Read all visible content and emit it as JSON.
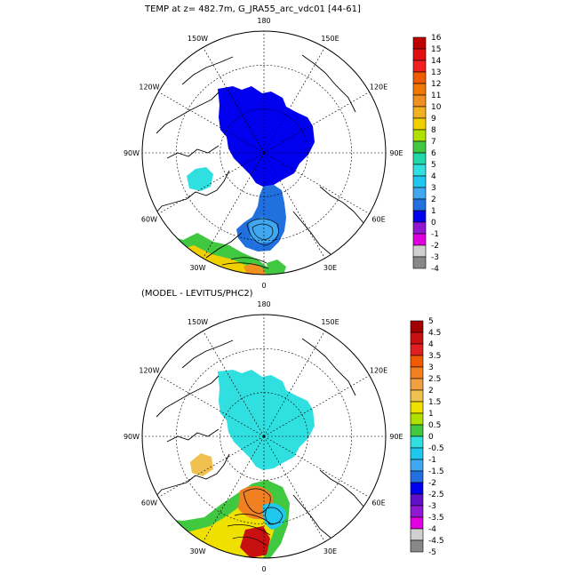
{
  "panels": [
    {
      "title": "TEMP at z= 482.7m, G_JRA55_arc_vdc01 [44-61]",
      "lon_labels": [
        "180",
        "150E",
        "120E",
        "90E",
        "60E",
        "30E",
        "0",
        "30W",
        "60W",
        "90W",
        "120W",
        "150W"
      ],
      "colorbar": {
        "labels": [
          "16",
          "15",
          "14",
          "13",
          "12",
          "11",
          "10",
          "9",
          "8",
          "7",
          "6",
          "5",
          "4",
          "3",
          "2",
          "1",
          "0",
          "-1",
          "-2",
          "-3",
          "-4"
        ],
        "colors": [
          "#c00000",
          "#e01010",
          "#f02020",
          "#f05a00",
          "#f07800",
          "#f09020",
          "#f0b020",
          "#f0d000",
          "#b0e000",
          "#40c840",
          "#20d8a8",
          "#30e0e0",
          "#20c8f0",
          "#40a8f0",
          "#2070e0",
          "#0000ee",
          "#9018d0",
          "#e000e0",
          "#d0d0d0",
          "#888888"
        ]
      }
    },
    {
      "title": "(MODEL - LEVITUS/PHC2)",
      "lon_labels": [
        "180",
        "150E",
        "120E",
        "90E",
        "60E",
        "30E",
        "0",
        "30W",
        "60W",
        "90W",
        "120W",
        "150W"
      ],
      "colorbar": {
        "labels": [
          "5",
          "4.5",
          "4",
          "3.5",
          "3",
          "2.5",
          "2",
          "1.5",
          "1",
          "0.5",
          "0",
          "-0.5",
          "-1",
          "-1.5",
          "-2",
          "-2.5",
          "-3",
          "-3.5",
          "-4",
          "-4.5",
          "-5"
        ],
        "colors": [
          "#a00000",
          "#c81010",
          "#e02020",
          "#f05a00",
          "#f08020",
          "#f0a040",
          "#f0c050",
          "#f0e000",
          "#b0e000",
          "#40c840",
          "#30e0e0",
          "#20c8f0",
          "#40a8f0",
          "#2070e0",
          "#0000ee",
          "#6010c8",
          "#9018d0",
          "#e000e0",
          "#d0d0d0",
          "#888888"
        ]
      }
    }
  ]
}
